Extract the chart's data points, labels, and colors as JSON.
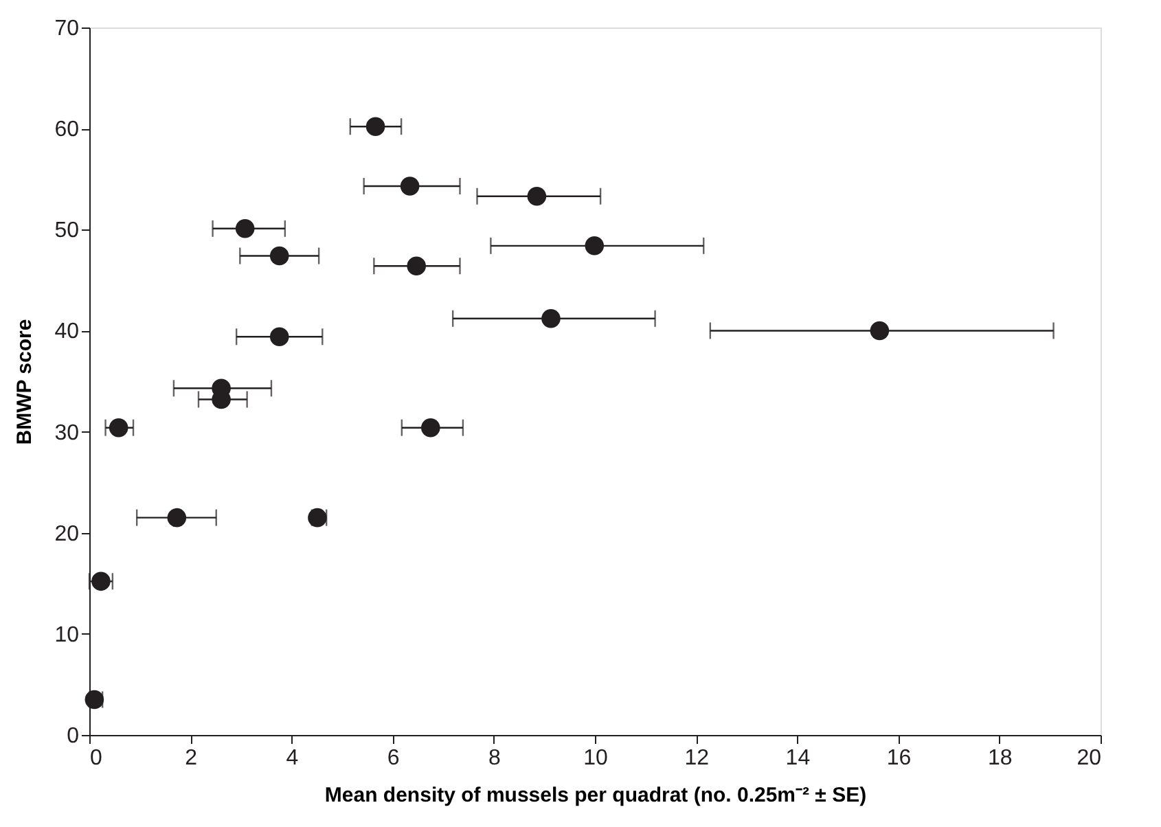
{
  "chart_data": {
    "type": "scatter",
    "xlabel": "Mean density of mussels per quadrat (no. 0.25m⁻² ± SE)",
    "ylabel": "BMWP score",
    "x": [
      5.66,
      6.34,
      8.85,
      3.08,
      3.76,
      9.99,
      6.47,
      9.13,
      15.63,
      3.76,
      2.61,
      2.61,
      0.58,
      6.75,
      1.73,
      4.51,
      0.23,
      0.1
    ],
    "series": [
      {
        "color": "#231f20",
        "values": [
          60.2,
          54.3,
          53.3,
          50.1,
          47.4,
          48.4,
          46.4,
          41.2,
          40.0,
          39.4,
          34.3,
          33.2,
          30.4,
          30.4,
          21.5,
          21.5,
          15.2,
          3.5
        ],
        "xerrors": [
          [
            5.16,
            6.17
          ],
          [
            5.43,
            7.33
          ],
          [
            7.67,
            10.11
          ],
          [
            2.44,
            3.87
          ],
          [
            2.98,
            4.54
          ],
          [
            7.94,
            12.15
          ],
          [
            5.63,
            7.33
          ],
          [
            7.19,
            11.19
          ],
          [
            12.28,
            19.07
          ],
          [
            2.91,
            4.61
          ],
          [
            1.67,
            3.6
          ],
          [
            2.16,
            3.12
          ],
          [
            0.32,
            0.87
          ],
          [
            6.18,
            7.39
          ],
          [
            0.94,
            2.51
          ],
          [
            4.4,
            4.69
          ],
          [
            0.0,
            0.46
          ],
          [
            0.0,
            0.26
          ]
        ]
      }
    ],
    "xlim": [
      0,
      20
    ],
    "xticks": [
      0,
      2,
      4,
      6,
      8,
      10,
      12,
      14,
      16,
      18,
      20
    ],
    "ylim": [
      0,
      70
    ],
    "yticks": [
      0,
      10,
      20,
      30,
      40,
      50,
      60,
      70
    ],
    "grid": false,
    "legend": false,
    "marker": "circle"
  }
}
